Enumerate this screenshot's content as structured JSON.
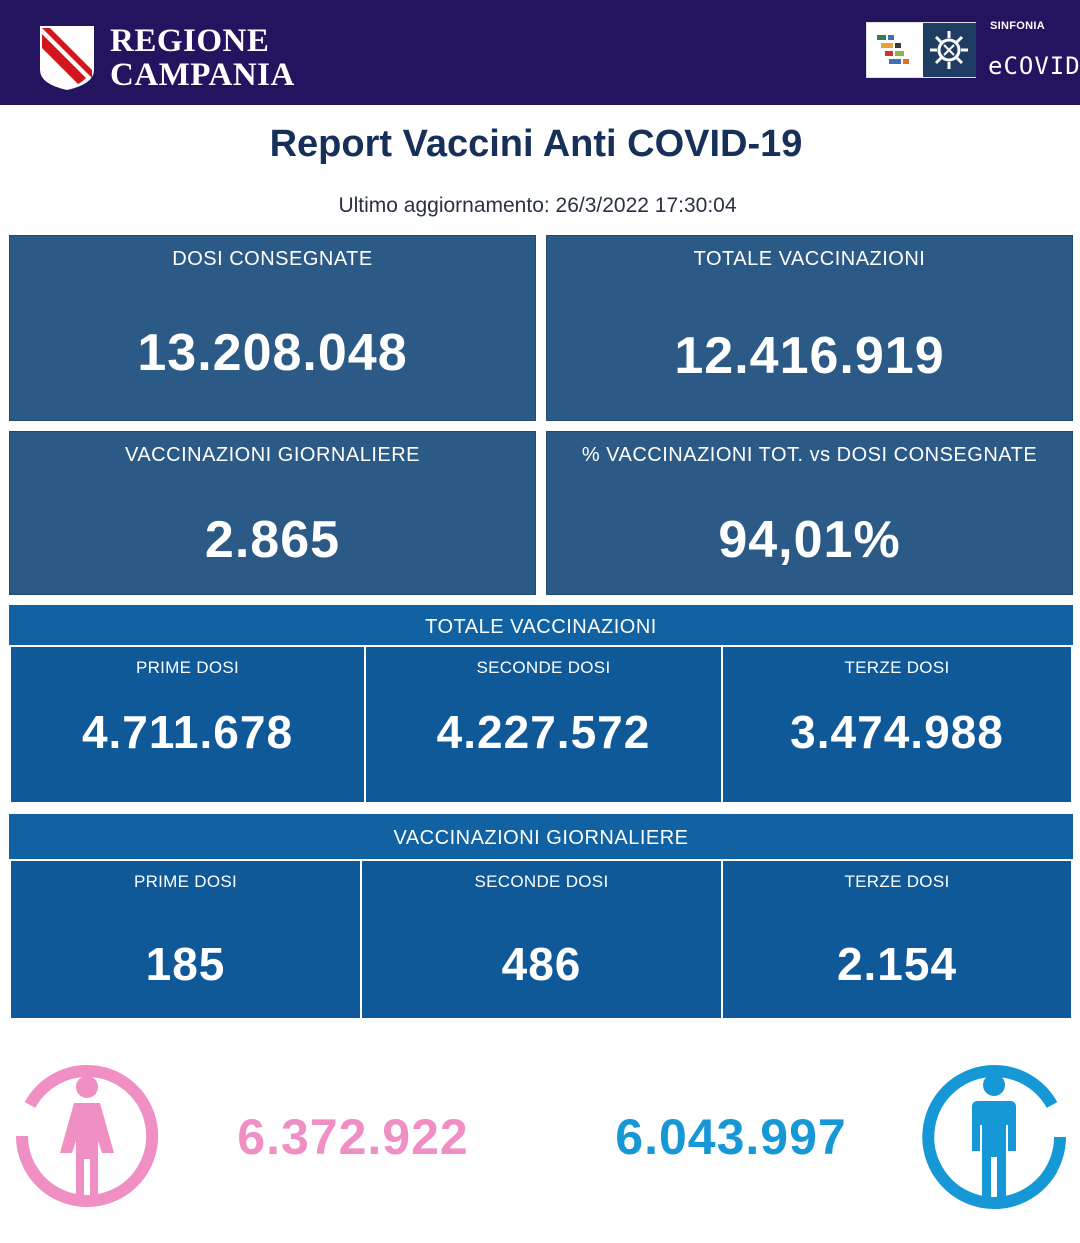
{
  "header": {
    "region_line1": "REGIONE",
    "region_line2": "CAMPANIA",
    "sinfonia": "SINFONIA",
    "ecovid": "eCOVID",
    "logo_icon": "region-crest-icon",
    "ecovid_icon": "virus-icon"
  },
  "report": {
    "title": "Report Vaccini Anti COVID-19",
    "last_update": "Ultimo aggiornamento: 26/3/2022  17:30:04"
  },
  "summary": {
    "dosi_consegnate": {
      "label": "DOSI  CONSEGNATE",
      "value": "13.208.048"
    },
    "totale_vaccinazioni": {
      "label": "TOTALE VACCINAZIONI",
      "value": "12.416.919"
    },
    "vaccinazioni_giornaliere": {
      "label": "VACCINAZIONI GIORNALIERE",
      "value": "2.865"
    },
    "percentuale": {
      "label": "% VACCINAZIONI TOT. vs DOSI CONSEGNATE",
      "value": "94,01%"
    }
  },
  "totale_section": {
    "title": "TOTALE VACCINAZIONI",
    "items": [
      {
        "label": "PRIME DOSI",
        "value": "4.711.678"
      },
      {
        "label": "SECONDE DOSI",
        "value": "4.227.572"
      },
      {
        "label": "TERZE DOSI",
        "value": "3.474.988"
      }
    ]
  },
  "giornaliere_section": {
    "title": "VACCINAZIONI GIORNALIERE",
    "items": [
      {
        "label": "PRIME DOSI",
        "value": "185"
      },
      {
        "label": "SECONDE DOSI",
        "value": "486"
      },
      {
        "label": "TERZE DOSI",
        "value": "2.154"
      }
    ]
  },
  "gender": {
    "female": {
      "value": "6.372.922",
      "color": "#ef8fc4",
      "icon": "female-icon"
    },
    "male": {
      "value": "6.043.997",
      "color": "#1798d6",
      "icon": "male-icon"
    }
  }
}
